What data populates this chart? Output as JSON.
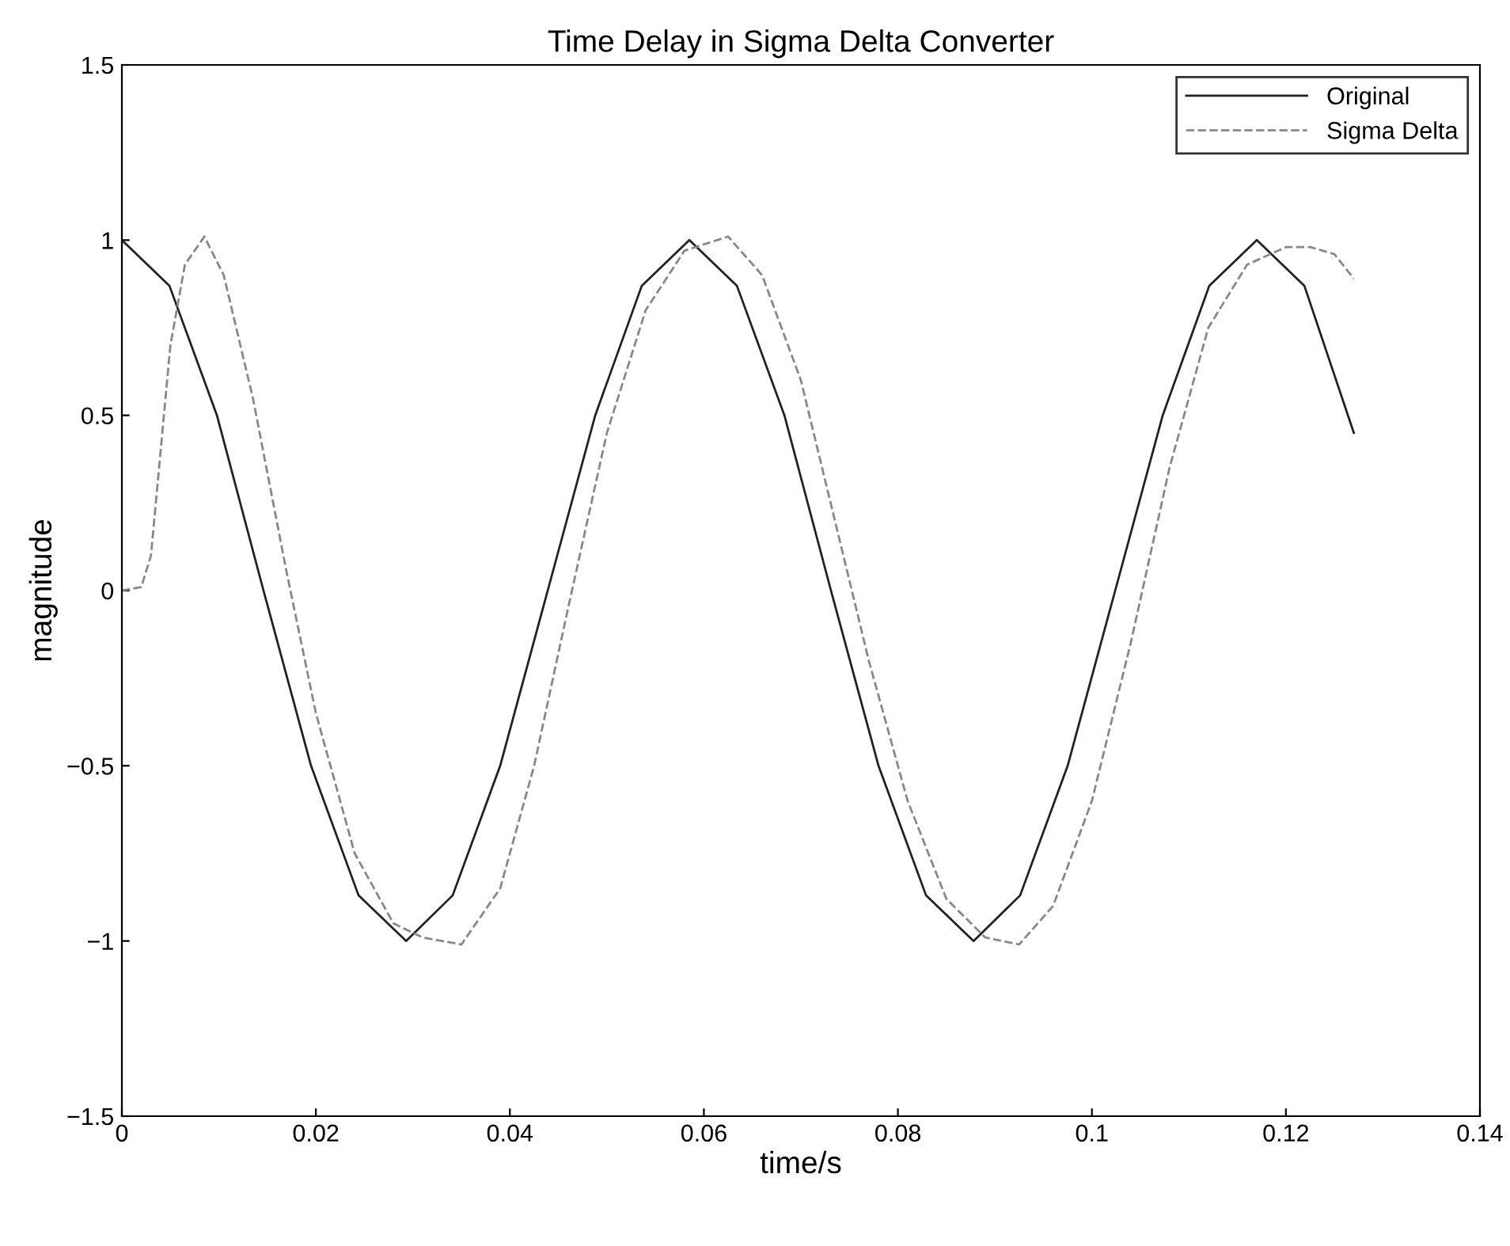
{
  "chart_data": {
    "type": "line",
    "title": "Time Delay in Sigma Delta Converter",
    "xlabel": "time/s",
    "ylabel": "magnitude",
    "xlim": [
      0,
      0.14
    ],
    "ylim": [
      -1.5,
      1.5
    ],
    "xticks": [
      0,
      0.02,
      0.04,
      0.06,
      0.08,
      0.1,
      0.12,
      0.14
    ],
    "yticks": [
      -1.5,
      -1,
      -0.5,
      0,
      0.5,
      1,
      1.5
    ],
    "grid": false,
    "legend": "top right",
    "series": [
      {
        "name": "Original",
        "color": "#222222",
        "line_style": "solid",
        "x": [
          0,
          0.0049,
          0.0098,
          0.0146,
          0.0195,
          0.0244,
          0.0293,
          0.0341,
          0.039,
          0.0439,
          0.0488,
          0.0536,
          0.0585,
          0.0634,
          0.0683,
          0.0731,
          0.078,
          0.0829,
          0.0878,
          0.0926,
          0.0975,
          0.1024,
          0.1073,
          0.1121,
          0.117,
          0.1219,
          0.127
        ],
        "values": [
          1,
          0.87,
          0.5,
          0,
          -0.5,
          -0.87,
          -1,
          -0.87,
          -0.5,
          0,
          0.5,
          0.87,
          1,
          0.87,
          0.5,
          0,
          -0.5,
          -0.87,
          -1,
          -0.87,
          -0.5,
          0,
          0.5,
          0.87,
          1,
          0.87,
          0.45
        ]
      },
      {
        "name": "Sigma Delta",
        "color": "#888888",
        "line_style": "dashed",
        "x": [
          0,
          0.002,
          0.003,
          0.004,
          0.005,
          0.0065,
          0.0085,
          0.0105,
          0.0135,
          0.017,
          0.02,
          0.024,
          0.028,
          0.031,
          0.035,
          0.039,
          0.0425,
          0.046,
          0.05,
          0.054,
          0.058,
          0.0625,
          0.066,
          0.07,
          0.0735,
          0.077,
          0.081,
          0.085,
          0.089,
          0.0925,
          0.096,
          0.1,
          0.104,
          0.108,
          0.112,
          0.116,
          0.12,
          0.1225,
          0.125,
          0.127
        ],
        "values": [
          0,
          0.01,
          0.1,
          0.4,
          0.7,
          0.93,
          1.01,
          0.9,
          0.55,
          0.05,
          -0.35,
          -0.75,
          -0.95,
          -0.99,
          -1.01,
          -0.85,
          -0.5,
          -0.05,
          0.45,
          0.8,
          0.97,
          1.01,
          0.9,
          0.6,
          0.2,
          -0.2,
          -0.6,
          -0.88,
          -0.99,
          -1.01,
          -0.9,
          -0.6,
          -0.15,
          0.35,
          0.75,
          0.93,
          0.98,
          0.98,
          0.96,
          0.89
        ]
      }
    ]
  }
}
